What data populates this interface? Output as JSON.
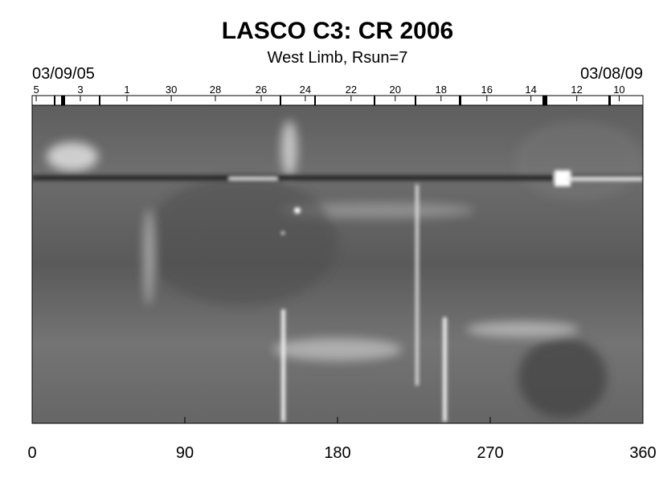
{
  "chart_data": {
    "type": "synoptic-map",
    "title": "LASCO C3: CR 2006",
    "subtitle": "West Limb, Rsun=7",
    "start_date": "03/09/05",
    "end_date": "03/08/09",
    "xlim": [
      0,
      360
    ],
    "xticks": [
      0,
      90,
      180,
      270,
      360
    ],
    "x2ticks": [
      {
        "value": 2.4,
        "label": "5"
      },
      {
        "value": 28.4,
        "label": "3"
      },
      {
        "value": 55.9,
        "label": "1"
      },
      {
        "value": 82,
        "label": "30"
      },
      {
        "value": 108,
        "label": "28"
      },
      {
        "value": 135,
        "label": "26"
      },
      {
        "value": 161,
        "label": "24"
      },
      {
        "value": 188,
        "label": "22"
      },
      {
        "value": 214,
        "label": "20"
      },
      {
        "value": 241,
        "label": "18"
      },
      {
        "value": 268,
        "label": "16"
      },
      {
        "value": 294,
        "label": "14"
      },
      {
        "value": 321,
        "label": "12"
      },
      {
        "value": 346,
        "label": "10"
      }
    ],
    "grid": false
  }
}
